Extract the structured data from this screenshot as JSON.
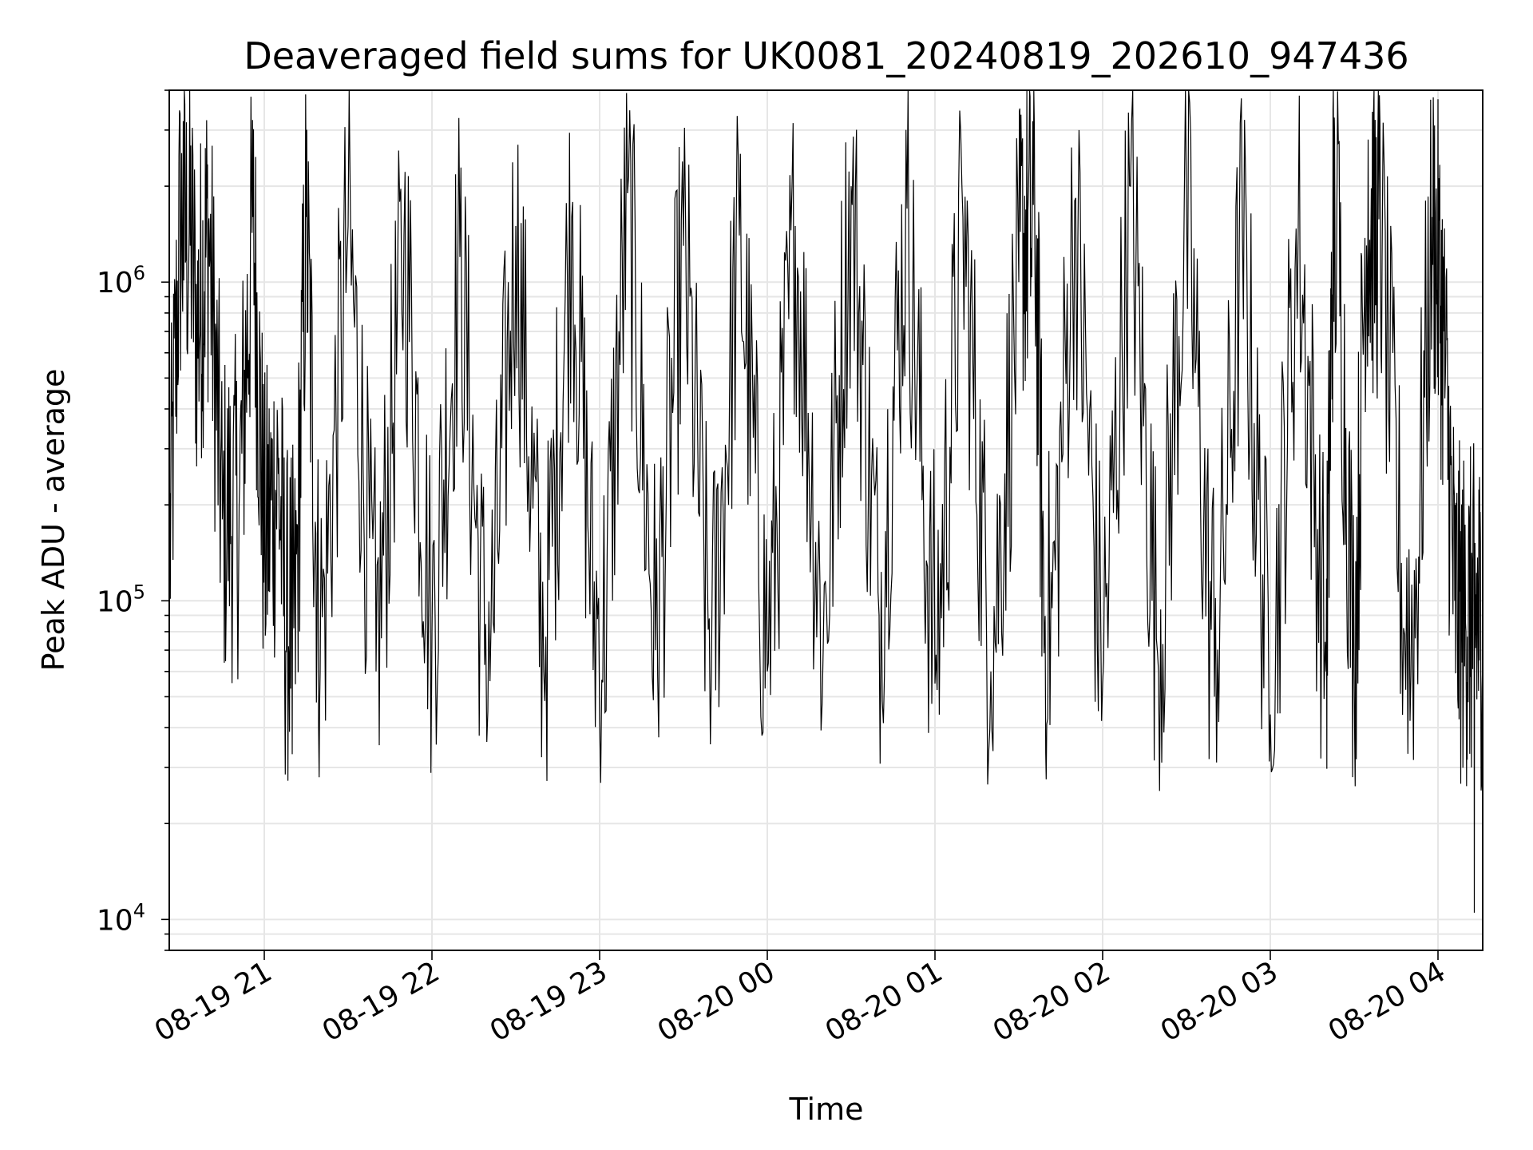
{
  "chart_data": {
    "type": "line",
    "title": "Deaveraged field sums for UK0081_20240819_202610_947436",
    "xlabel": "Time",
    "ylabel": "Peak ADU - average",
    "yscale": "log",
    "ylim": [
      8000,
      4000000
    ],
    "xlim": [
      "2024-08-19 20:26",
      "2024-08-20 04:16"
    ],
    "x_ticks": [
      "08-19 21",
      "08-19 22",
      "08-19 23",
      "08-20 00",
      "08-20 01",
      "08-20 02",
      "08-20 03",
      "08-20 04"
    ],
    "y_ticks": [
      {
        "base": "10",
        "exp": "4",
        "value": 10000
      },
      {
        "base": "10",
        "exp": "5",
        "value": 100000
      },
      {
        "base": "10",
        "exp": "6",
        "value": 1000000
      }
    ],
    "grid": true,
    "line_color": "#000000",
    "grid_color": "#e6e6e6",
    "series": [
      {
        "x": [
          "2024-08-19 20:26",
          "2024-08-19 20:31",
          "2024-08-19 20:36",
          "2024-08-19 20:40",
          "2024-08-19 20:45",
          "2024-08-19 20:51",
          "2024-08-19 20:56",
          "2024-08-19 21:00",
          "2024-08-19 21:05",
          "2024-08-19 21:10",
          "2024-08-19 21:15",
          "2024-08-19 21:20",
          "2024-08-19 21:30",
          "2024-08-19 21:40",
          "2024-08-19 21:50",
          "2024-08-19 22:00",
          "2024-08-19 22:10",
          "2024-08-19 22:20",
          "2024-08-19 22:30",
          "2024-08-19 22:40",
          "2024-08-19 22:50",
          "2024-08-19 23:00",
          "2024-08-19 23:10",
          "2024-08-19 23:20",
          "2024-08-19 23:30",
          "2024-08-19 23:40",
          "2024-08-19 23:50",
          "2024-08-20 00:00",
          "2024-08-20 00:10",
          "2024-08-20 00:20",
          "2024-08-20 00:30",
          "2024-08-20 00:40",
          "2024-08-20 00:50",
          "2024-08-20 01:00",
          "2024-08-20 01:10",
          "2024-08-20 01:20",
          "2024-08-20 01:30",
          "2024-08-20 01:35",
          "2024-08-20 01:40",
          "2024-08-20 01:50",
          "2024-08-20 02:00",
          "2024-08-20 02:10",
          "2024-08-20 02:20",
          "2024-08-20 02:30",
          "2024-08-20 02:40",
          "2024-08-20 02:50",
          "2024-08-20 03:00",
          "2024-08-20 03:10",
          "2024-08-20 03:20",
          "2024-08-20 03:23",
          "2024-08-20 03:30",
          "2024-08-20 03:35",
          "2024-08-20 03:40",
          "2024-08-20 03:50",
          "2024-08-20 03:58",
          "2024-08-20 04:02",
          "2024-08-20 04:06",
          "2024-08-20 04:10",
          "2024-08-20 04:13",
          "2024-08-20 04:16"
        ],
        "y": [
          130000,
          3200000,
          700000,
          1500000,
          180000,
          200000,
          1600000,
          150000,
          250000,
          33000,
          1600000,
          60000,
          1500000,
          60000,
          1400000,
          80000,
          1200000,
          45000,
          1500000,
          60000,
          1600000,
          42000,
          1900000,
          70000,
          1300000,
          60000,
          1400000,
          60000,
          1500000,
          70000,
          2000000,
          90000,
          1700000,
          55000,
          1600000,
          60000,
          1000000,
          3200000,
          41000,
          1800000,
          55000,
          2000000,
          60000,
          1800000,
          50000,
          1500000,
          44000,
          1500000,
          60000,
          2900000,
          60000,
          2800000,
          1200000,
          42000,
          1600000,
          700000,
          100000,
          80000,
          10500,
          110000
        ]
      }
    ]
  }
}
